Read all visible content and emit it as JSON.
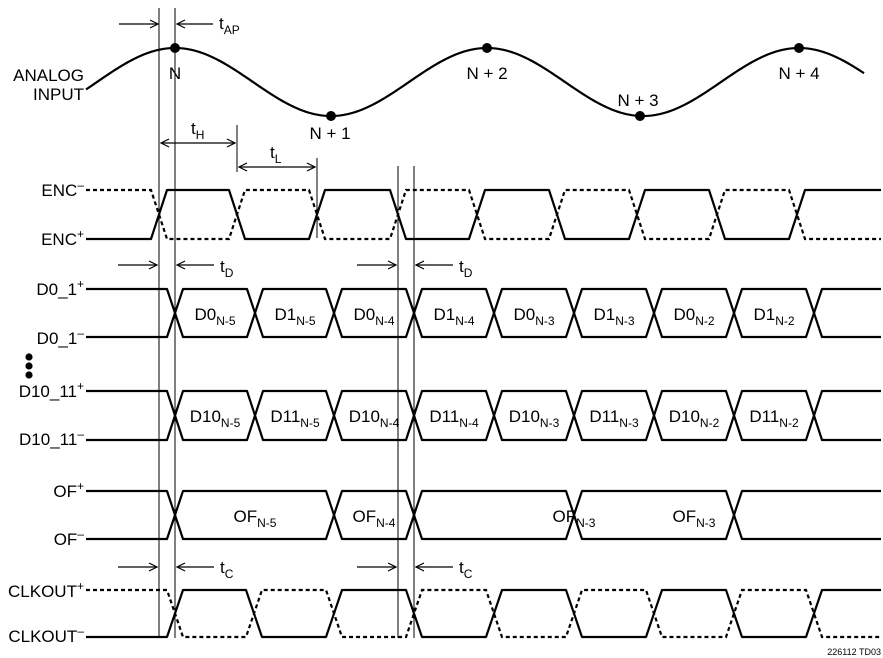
{
  "analog": {
    "label_line1": "ANALOG",
    "label_line2": "INPUT",
    "samples": [
      {
        "text": "N"
      },
      {
        "text": "N + 1"
      },
      {
        "text": "N + 2"
      },
      {
        "text": "N + 3"
      },
      {
        "text": "N + 4"
      }
    ]
  },
  "timing": {
    "tAP": {
      "main": "t",
      "sub": "AP"
    },
    "tH": {
      "main": "t",
      "sub": "H"
    },
    "tL": {
      "main": "t",
      "sub": "L"
    },
    "tD": {
      "main": "t",
      "sub": "D"
    },
    "tC": {
      "main": "t",
      "sub": "C"
    }
  },
  "signals": {
    "enc_minus": {
      "main": "ENC",
      "sup": "–"
    },
    "enc_plus": {
      "main": "ENC",
      "sup": "+"
    },
    "d01_plus": {
      "main": "D0_1",
      "sup": "+"
    },
    "d01_minus": {
      "main": "D0_1",
      "sup": "–"
    },
    "d1011_plus": {
      "main": "D10_11",
      "sup": "+"
    },
    "d1011_minus": {
      "main": "D10_11",
      "sup": "–"
    },
    "of_plus": {
      "main": "OF",
      "sup": "+"
    },
    "of_minus": {
      "main": "OF",
      "sup": "–"
    },
    "clkout_plus": {
      "main": "CLKOUT",
      "sup": "+"
    },
    "clkout_minus": {
      "main": "CLKOUT",
      "sup": "–"
    }
  },
  "d01_words": [
    {
      "main": "D0",
      "sub": "N-5"
    },
    {
      "main": "D1",
      "sub": "N-5"
    },
    {
      "main": "D0",
      "sub": "N-4"
    },
    {
      "main": "D1",
      "sub": "N-4"
    },
    {
      "main": "D0",
      "sub": "N-3"
    },
    {
      "main": "D1",
      "sub": "N-3"
    },
    {
      "main": "D0",
      "sub": "N-2"
    },
    {
      "main": "D1",
      "sub": "N-2"
    }
  ],
  "d1011_words": [
    {
      "main": "D10",
      "sub": "N-5"
    },
    {
      "main": "D11",
      "sub": "N-5"
    },
    {
      "main": "D10",
      "sub": "N-4"
    },
    {
      "main": "D11",
      "sub": "N-4"
    },
    {
      "main": "D10",
      "sub": "N-3"
    },
    {
      "main": "D11",
      "sub": "N-3"
    },
    {
      "main": "D10",
      "sub": "N-2"
    },
    {
      "main": "D11",
      "sub": "N-2"
    }
  ],
  "of_words": [
    {
      "main": "OF",
      "sub": "N-5"
    },
    {
      "main": "OF",
      "sub": "N-4"
    },
    {
      "main": "OF",
      "sub": "N-3"
    },
    {
      "main": "OF",
      "sub": "N-3"
    }
  ],
  "figure_id": "226112 TD03"
}
